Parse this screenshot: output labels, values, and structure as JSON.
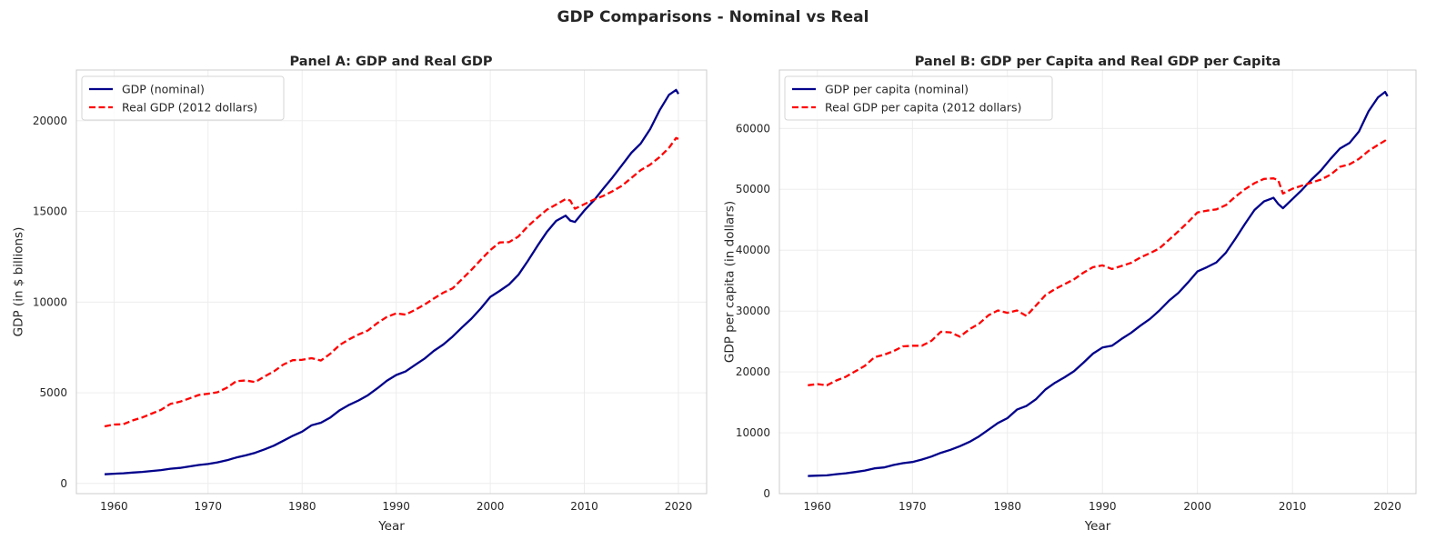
{
  "chart_data": {
    "type": "line",
    "title": "GDP Comparisons - Nominal vs Real",
    "colors": {
      "nominal": "#00008b",
      "real": "#ff0000"
    },
    "panels": [
      {
        "title": "Panel A: GDP and Real GDP",
        "xlabel": "Year",
        "ylabel": "GDP (in $ billions)",
        "xlim": [
          1956,
          2023
        ],
        "ylim": [
          -560,
          22800
        ],
        "xticks": [
          1960,
          1970,
          1980,
          1990,
          2000,
          2010,
          2020
        ],
        "yticks": [
          0,
          5000,
          10000,
          15000,
          20000
        ],
        "xtick_labels": [
          "1960",
          "1970",
          "1980",
          "1990",
          "2000",
          "2010",
          "2020"
        ],
        "ytick_labels": [
          "0",
          "5000",
          "10000",
          "15000",
          "20000"
        ],
        "grid": true,
        "legend": "top-left",
        "x": [
          1959,
          1960,
          1961,
          1962,
          1963,
          1964,
          1965,
          1966,
          1967,
          1968,
          1969,
          1970,
          1971,
          1972,
          1973,
          1974,
          1975,
          1976,
          1977,
          1978,
          1979,
          1980,
          1981,
          1982,
          1983,
          1984,
          1985,
          1986,
          1987,
          1988,
          1989,
          1990,
          1991,
          1992,
          1993,
          1994,
          1995,
          1996,
          1997,
          1998,
          1999,
          2000,
          2001,
          2002,
          2003,
          2004,
          2005,
          2006,
          2007,
          2008,
          2008.5,
          2009,
          2010,
          2011,
          2012,
          2013,
          2014,
          2015,
          2016,
          2017,
          2018,
          2019,
          2019.75,
          2020
        ],
        "series": [
          {
            "name": "GDP (nominal)",
            "style": "solid",
            "values": [
              510,
              540,
              565,
              605,
              640,
              690,
              740,
              815,
              860,
              940,
              1020,
              1075,
              1165,
              1280,
              1430,
              1550,
              1690,
              1880,
              2085,
              2355,
              2630,
              2860,
              3210,
              3350,
              3640,
              4040,
              4340,
              4580,
              4870,
              5250,
              5660,
              5980,
              6175,
              6540,
              6880,
              7310,
              7660,
              8100,
              8610,
              9090,
              9660,
              10290,
              10620,
              10980,
              11510,
              12280,
              13090,
              13860,
              14480,
              14770,
              14500,
              14420,
              15050,
              15600,
              16250,
              16880,
              17550,
              18240,
              18750,
              19540,
              20580,
              21430,
              21700,
              21480
            ]
          },
          {
            "name": "Real GDP (2012 dollars)",
            "style": "dashed",
            "values": [
              3150,
              3250,
              3270,
              3480,
              3640,
              3850,
              4060,
              4390,
              4510,
              4690,
              4880,
              4950,
              5030,
              5280,
              5640,
              5680,
              5590,
              5900,
              6180,
              6560,
              6800,
              6820,
              6910,
              6780,
              7160,
              7640,
              7950,
              8220,
              8440,
              8850,
              9180,
              9380,
              9310,
              9570,
              9860,
              10200,
              10520,
              10760,
              11270,
              11780,
              12340,
              12870,
              13290,
              13310,
              13620,
              14190,
              14650,
              15090,
              15380,
              15680,
              15600,
              15150,
              15400,
              15650,
              15850,
              16120,
              16420,
              16850,
              17280,
              17580,
              18000,
              18510,
              19050,
              19000
            ]
          }
        ]
      },
      {
        "title": "Panel B: GDP per Capita and Real GDP per Capita",
        "xlabel": "Year",
        "ylabel": "GDP per capita (in dollars)",
        "xlim": [
          1956,
          2023
        ],
        "ylim": [
          0,
          69600
        ],
        "xticks": [
          1960,
          1970,
          1980,
          1990,
          2000,
          2010,
          2020
        ],
        "yticks": [
          0,
          10000,
          20000,
          30000,
          40000,
          50000,
          60000
        ],
        "xtick_labels": [
          "1960",
          "1970",
          "1980",
          "1990",
          "2000",
          "2010",
          "2020"
        ],
        "ytick_labels": [
          "0",
          "10000",
          "20000",
          "30000",
          "40000",
          "50000",
          "60000"
        ],
        "grid": true,
        "legend": "top-left",
        "x": [
          1959,
          1960,
          1961,
          1962,
          1963,
          1964,
          1965,
          1966,
          1967,
          1968,
          1969,
          1970,
          1971,
          1972,
          1973,
          1974,
          1975,
          1976,
          1977,
          1978,
          1979,
          1980,
          1981,
          1982,
          1983,
          1984,
          1985,
          1986,
          1987,
          1988,
          1989,
          1990,
          1991,
          1992,
          1993,
          1994,
          1995,
          1996,
          1997,
          1998,
          1999,
          2000,
          2001,
          2002,
          2003,
          2004,
          2005,
          2006,
          2007,
          2008,
          2008.5,
          2009,
          2010,
          2011,
          2012,
          2013,
          2014,
          2015,
          2016,
          2017,
          2018,
          2019,
          2019.75,
          2020
        ],
        "series": [
          {
            "name": "GDP per capita (nominal)",
            "style": "solid",
            "values": [
              2900,
              2950,
              3000,
              3200,
              3350,
              3550,
              3800,
              4150,
              4300,
              4700,
              5000,
              5200,
              5600,
              6100,
              6700,
              7200,
              7800,
              8500,
              9400,
              10500,
              11600,
              12400,
              13800,
              14400,
              15500,
              17100,
              18200,
              19100,
              20100,
              21500,
              23000,
              24000,
              24300,
              25400,
              26400,
              27600,
              28700,
              30100,
              31700,
              33000,
              34700,
              36500,
              37200,
              38000,
              39600,
              41900,
              44300,
              46600,
              48000,
              48600,
              47600,
              46900,
              48400,
              49900,
              51600,
              53100,
              55000,
              56700,
              57600,
              59500,
              62800,
              65100,
              66000,
              65300
            ]
          },
          {
            "name": "Real GDP per capita (2012 dollars)",
            "style": "dashed",
            "values": [
              17800,
              18000,
              17800,
              18600,
              19200,
              20100,
              21000,
              22400,
              22800,
              23400,
              24200,
              24300,
              24300,
              25100,
              26600,
              26500,
              25800,
              27000,
              27900,
              29300,
              30100,
              29700,
              30100,
              29200,
              30900,
              32600,
              33600,
              34400,
              35200,
              36300,
              37200,
              37500,
              36900,
              37400,
              37900,
              38800,
              39500,
              40300,
              41700,
              43100,
              44600,
              46200,
              46500,
              46700,
              47400,
              48800,
              50000,
              51000,
              51700,
              51800,
              51500,
              49300,
              50100,
              50600,
              51100,
              51600,
              52400,
              53700,
              54100,
              55000,
              56300,
              57300,
              58000,
              57600
            ]
          }
        ]
      }
    ]
  }
}
